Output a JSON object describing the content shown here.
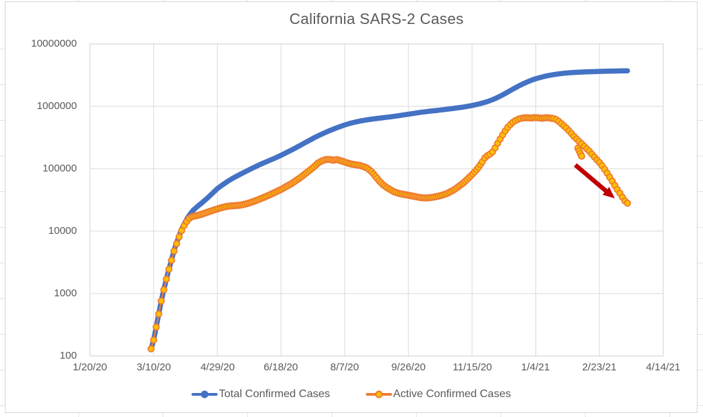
{
  "chart_data": {
    "type": "line",
    "title": "California SARS-2 Cases",
    "x_axis": {
      "type": "date",
      "day_zero": "1/20/20",
      "tick_interval_days": 50,
      "tick_labels": [
        "1/20/20",
        "3/10/20",
        "4/29/20",
        "6/18/20",
        "8/7/20",
        "9/26/20",
        "11/15/20",
        "1/4/21",
        "2/23/21",
        "4/14/21"
      ]
    },
    "y_axis": {
      "scale": "log",
      "min": 100,
      "max": 10000000,
      "tick_labels": [
        "10000000",
        "1000000",
        "100000",
        "10000",
        "1000",
        "100"
      ]
    },
    "grid": true,
    "legend_position": "bottom",
    "series": [
      {
        "name": "Total Confirmed Cases",
        "color": "#4472C4",
        "marker_fill": "#4472C4",
        "style": "thick-line",
        "points_day_value": [
          [
            48,
            130
          ],
          [
            50,
            180
          ],
          [
            52,
            290
          ],
          [
            54,
            470
          ],
          [
            56,
            760
          ],
          [
            58,
            1150
          ],
          [
            60,
            1700
          ],
          [
            62,
            2450
          ],
          [
            64,
            3450
          ],
          [
            66,
            4900
          ],
          [
            68,
            6500
          ],
          [
            70,
            8400
          ],
          [
            72,
            10700
          ],
          [
            74,
            13000
          ],
          [
            76,
            15500
          ],
          [
            78,
            18000
          ],
          [
            81,
            21500
          ],
          [
            84,
            24500
          ],
          [
            88,
            28500
          ],
          [
            92,
            33500
          ],
          [
            96,
            40000
          ],
          [
            100,
            48000
          ],
          [
            104,
            55000
          ],
          [
            108,
            62500
          ],
          [
            112,
            70000
          ],
          [
            116,
            77500
          ],
          [
            120,
            85500
          ],
          [
            124,
            94000
          ],
          [
            128,
            103000
          ],
          [
            132,
            113000
          ],
          [
            136,
            123000
          ],
          [
            140,
            133000
          ],
          [
            144,
            144000
          ],
          [
            148,
            157000
          ],
          [
            152,
            172000
          ],
          [
            156,
            189000
          ],
          [
            160,
            208000
          ],
          [
            164,
            230000
          ],
          [
            168,
            255000
          ],
          [
            172,
            283000
          ],
          [
            176,
            313000
          ],
          [
            180,
            343000
          ],
          [
            184,
            374000
          ],
          [
            188,
            406000
          ],
          [
            192,
            438000
          ],
          [
            196,
            470000
          ],
          [
            200,
            502000
          ],
          [
            204,
            532000
          ],
          [
            208,
            558000
          ],
          [
            212,
            580000
          ],
          [
            216,
            600000
          ],
          [
            220,
            618000
          ],
          [
            224,
            634000
          ],
          [
            228,
            649000
          ],
          [
            232,
            664000
          ],
          [
            236,
            679000
          ],
          [
            240,
            696000
          ],
          [
            244,
            716000
          ],
          [
            248,
            737000
          ],
          [
            252,
            759000
          ],
          [
            256,
            781000
          ],
          [
            260,
            802000
          ],
          [
            264,
            821000
          ],
          [
            268,
            839000
          ],
          [
            272,
            857000
          ],
          [
            276,
            876000
          ],
          [
            280,
            896000
          ],
          [
            284,
            917000
          ],
          [
            288,
            940000
          ],
          [
            292,
            966000
          ],
          [
            296,
            996000
          ],
          [
            300,
            1031000
          ],
          [
            304,
            1073000
          ],
          [
            308,
            1125000
          ],
          [
            312,
            1191000
          ],
          [
            316,
            1276000
          ],
          [
            320,
            1386000
          ],
          [
            324,
            1526000
          ],
          [
            328,
            1691000
          ],
          [
            332,
            1881000
          ],
          [
            336,
            2086000
          ],
          [
            340,
            2296000
          ],
          [
            344,
            2496000
          ],
          [
            348,
            2681000
          ],
          [
            352,
            2846000
          ],
          [
            356,
            2991000
          ],
          [
            360,
            3116000
          ],
          [
            364,
            3221000
          ],
          [
            368,
            3311000
          ],
          [
            372,
            3386000
          ],
          [
            376,
            3446000
          ],
          [
            380,
            3491000
          ],
          [
            384,
            3526000
          ],
          [
            388,
            3556000
          ],
          [
            392,
            3581000
          ],
          [
            396,
            3601000
          ],
          [
            400,
            3621000
          ],
          [
            404,
            3641000
          ],
          [
            408,
            3656000
          ],
          [
            412,
            3671000
          ],
          [
            416,
            3686000
          ],
          [
            420,
            3701000
          ],
          [
            422,
            3711000
          ]
        ]
      },
      {
        "name": "Active Confirmed Cases",
        "color": "#ED7D31",
        "marker_fill": "#FFC000",
        "style": "marker-chain",
        "points_day_value": [
          [
            48,
            130
          ],
          [
            50,
            180
          ],
          [
            52,
            290
          ],
          [
            54,
            470
          ],
          [
            56,
            760
          ],
          [
            58,
            1150
          ],
          [
            60,
            1700
          ],
          [
            62,
            2450
          ],
          [
            64,
            3400
          ],
          [
            66,
            4800
          ],
          [
            68,
            6300
          ],
          [
            70,
            8100
          ],
          [
            72,
            10200
          ],
          [
            74,
            12300
          ],
          [
            76,
            14300
          ],
          [
            78,
            16000
          ],
          [
            80,
            17000
          ],
          [
            83,
            17600
          ],
          [
            86,
            18200
          ],
          [
            89,
            19000
          ],
          [
            92,
            20000
          ],
          [
            95,
            21000
          ],
          [
            98,
            22000
          ],
          [
            101,
            23000
          ],
          [
            104,
            24000
          ],
          [
            107,
            24800
          ],
          [
            110,
            25300
          ],
          [
            113,
            25600
          ],
          [
            116,
            25800
          ],
          [
            119,
            26300
          ],
          [
            122,
            27200
          ],
          [
            125,
            28300
          ],
          [
            128,
            29700
          ],
          [
            131,
            31300
          ],
          [
            134,
            33100
          ],
          [
            137,
            35100
          ],
          [
            140,
            37300
          ],
          [
            143,
            39800
          ],
          [
            146,
            42500
          ],
          [
            149,
            45500
          ],
          [
            152,
            49000
          ],
          [
            155,
            53000
          ],
          [
            158,
            57500
          ],
          [
            161,
            63000
          ],
          [
            164,
            69500
          ],
          [
            167,
            77000
          ],
          [
            170,
            86000
          ],
          [
            173,
            96000
          ],
          [
            176,
            108000
          ],
          [
            179,
            123000
          ],
          [
            182,
            133000
          ],
          [
            185,
            140000
          ],
          [
            188,
            141000
          ],
          [
            191,
            137000
          ],
          [
            194,
            140000
          ],
          [
            197,
            134000
          ],
          [
            200,
            128000
          ],
          [
            203,
            122000
          ],
          [
            206,
            118000
          ],
          [
            209,
            115500
          ],
          [
            212,
            112500
          ],
          [
            215,
            108000
          ],
          [
            218,
            101000
          ],
          [
            221,
            90000
          ],
          [
            224,
            76000
          ],
          [
            227,
            64000
          ],
          [
            230,
            55500
          ],
          [
            233,
            50000
          ],
          [
            236,
            46000
          ],
          [
            239,
            42500
          ],
          [
            242,
            40500
          ],
          [
            245,
            39200
          ],
          [
            248,
            38300
          ],
          [
            251,
            37300
          ],
          [
            254,
            36200
          ],
          [
            257,
            35200
          ],
          [
            260,
            34400
          ],
          [
            263,
            34000
          ],
          [
            266,
            34200
          ],
          [
            269,
            34900
          ],
          [
            272,
            35800
          ],
          [
            275,
            37000
          ],
          [
            278,
            38500
          ],
          [
            281,
            40800
          ],
          [
            284,
            43800
          ],
          [
            287,
            47800
          ],
          [
            290,
            52800
          ],
          [
            293,
            59000
          ],
          [
            296,
            67000
          ],
          [
            299,
            77000
          ],
          [
            302,
            89000
          ],
          [
            305,
            105000
          ],
          [
            308,
            129000
          ],
          [
            310,
            149000
          ],
          [
            312,
            162000
          ],
          [
            314,
            171000
          ],
          [
            316,
            186000
          ],
          [
            318,
            216000
          ],
          [
            320,
            255000
          ],
          [
            322,
            299000
          ],
          [
            324,
            349000
          ],
          [
            326,
            404000
          ],
          [
            328,
            459000
          ],
          [
            330,
            509000
          ],
          [
            332,
            554000
          ],
          [
            334,
            591000
          ],
          [
            336,
            619000
          ],
          [
            338,
            639000
          ],
          [
            340,
            651000
          ],
          [
            343,
            657000
          ],
          [
            346,
            649000
          ],
          [
            349,
            659000
          ],
          [
            352,
            654000
          ],
          [
            355,
            644000
          ],
          [
            358,
            657000
          ],
          [
            361,
            649000
          ],
          [
            364,
            637000
          ],
          [
            366,
            614000
          ],
          [
            368,
            574000
          ],
          [
            370,
            529000
          ],
          [
            372,
            486000
          ],
          [
            374,
            447000
          ],
          [
            376,
            406000
          ],
          [
            378,
            366000
          ],
          [
            380,
            329000
          ],
          [
            382,
            300000
          ],
          [
            384,
            273000
          ],
          [
            386,
            251000
          ],
          [
            388,
            229000
          ],
          [
            390,
            209000
          ],
          [
            392,
            191000
          ],
          [
            394,
            171000
          ],
          [
            396,
            154000
          ],
          [
            398,
            139000
          ],
          [
            400,
            126000
          ],
          [
            402,
            112000
          ],
          [
            404,
            98000
          ],
          [
            406,
            85000
          ],
          [
            408,
            73000
          ],
          [
            410,
            63000
          ],
          [
            412,
            54000
          ],
          [
            414,
            46500
          ],
          [
            416,
            40500
          ],
          [
            418,
            35000
          ],
          [
            420,
            30500
          ],
          [
            422,
            28000
          ]
        ],
        "outlier_points_day_value": [
          [
            383,
            213000
          ],
          [
            384,
            193000
          ],
          [
            385,
            175000
          ],
          [
            386,
            159000
          ]
        ]
      }
    ],
    "annotation_arrow": {
      "color": "#C00000",
      "from_day": 381,
      "from_value": 115000,
      "to_day": 412,
      "to_value": 33500
    }
  },
  "icons": {
    "legend_marker_total": "filled-circle-on-line",
    "legend_marker_active": "gold-circle-on-line"
  }
}
